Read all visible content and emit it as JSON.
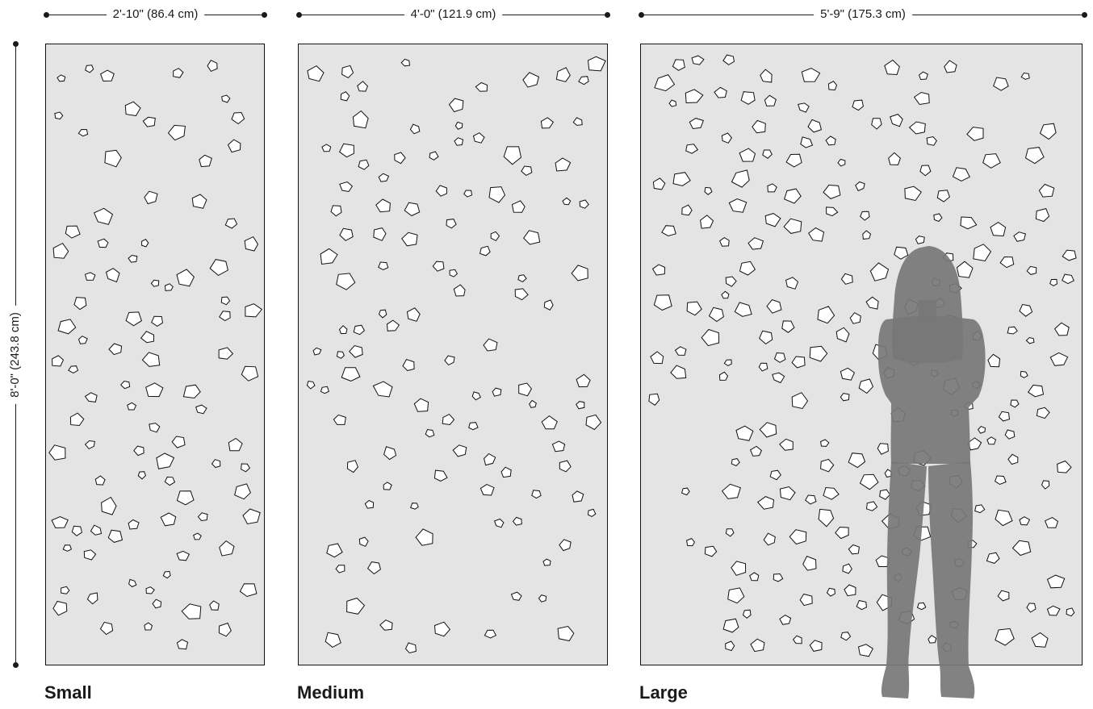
{
  "dimensions": {
    "height": "8'-0\" (243.8 cm)",
    "small_width": "2'-10\" (86.4 cm)",
    "medium_width": "4'-0\" (121.9 cm)",
    "large_width": "5'-9\" (175.3 cm)"
  },
  "panels": [
    {
      "name": "Small"
    },
    {
      "name": "Medium"
    },
    {
      "name": "Large"
    }
  ],
  "colors": {
    "panel_fill": "#e4e4e4",
    "outline": "#111111",
    "silhouette": "#777777"
  }
}
